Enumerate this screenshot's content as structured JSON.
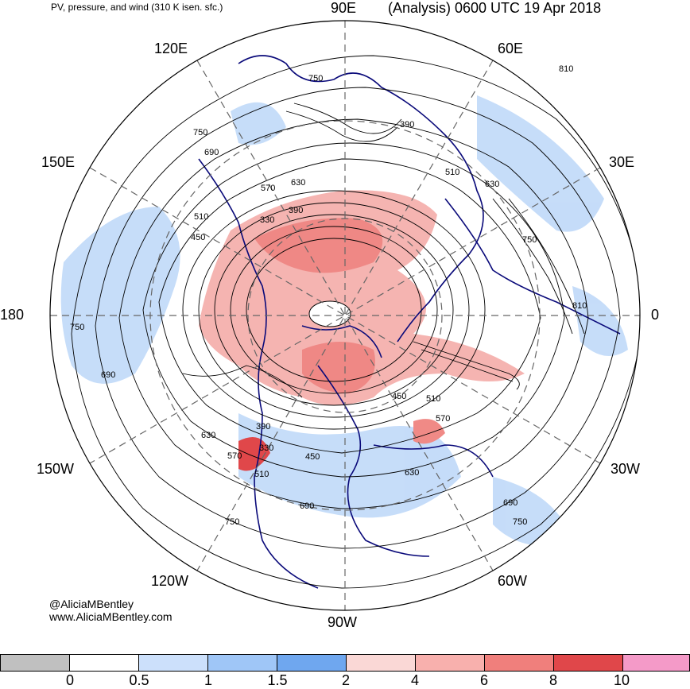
{
  "header": {
    "product": "PV, pressure, and wind (310 K isen. sfc.)",
    "analysis": "(Analysis) 0600 UTC 19 Apr 2018"
  },
  "longitude_labels": {
    "e90": "90E",
    "e60": "60E",
    "e30": "30E",
    "zero": "0",
    "w30": "30W",
    "w60": "60W",
    "w90": "90W",
    "w120": "120W",
    "w150": "150W",
    "d180": "180",
    "e150": "150E",
    "e120": "120E"
  },
  "credit": {
    "handle": "@AliciaMBentley",
    "site": "www.AliciaMBentley.com"
  },
  "contour_labels": {
    "c750": "750",
    "c810": "810",
    "c690": "690",
    "c630": "630",
    "c570": "570",
    "c510": "510",
    "c450": "450",
    "c390": "390",
    "c330": "330"
  },
  "colorbar": {
    "ticks": [
      "0",
      "0.5",
      "1",
      "1.5",
      "2",
      "4",
      "6",
      "8",
      "10"
    ],
    "colors": [
      "#c0c0c0",
      "#ffffff",
      "#cce0fb",
      "#9fc6f7",
      "#6fa7ef",
      "#fad8d6",
      "#f8b0ad",
      "#f07f7c",
      "#e0474a",
      "#f49ac8"
    ]
  },
  "colors": {
    "coast": "#0a0a7a",
    "pv_high": "#f08a86",
    "pv_low": "#a9cbf5",
    "contour": "#000000",
    "grid": "#666666"
  }
}
